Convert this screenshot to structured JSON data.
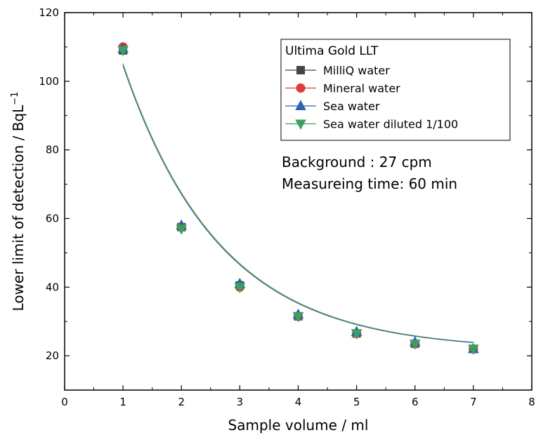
{
  "chart_data": {
    "type": "scatter",
    "xlabel": "Sample volume / ml",
    "ylabel": "Lower limit of detection / BqL",
    "ylabel_sup": "−1",
    "xlim": [
      0,
      8
    ],
    "ylim": [
      10,
      120
    ],
    "xticks": [
      0,
      1,
      2,
      3,
      4,
      5,
      6,
      7,
      8
    ],
    "yticks": [
      20,
      40,
      60,
      80,
      100,
      120
    ],
    "grid": false,
    "legend_title": "Ultima Gold LLT",
    "legend_position": "top-right",
    "annotations": [
      "Background : 27 cpm",
      "Measureing time: 60 min"
    ],
    "series": [
      {
        "name": "MilliQ water",
        "marker": "square",
        "color": "#444444",
        "x": [
          1,
          2,
          3,
          4,
          5,
          6,
          7
        ],
        "y": [
          109,
          57.5,
          40.5,
          31.5,
          26.5,
          23.5,
          22
        ]
      },
      {
        "name": "Mineral water",
        "marker": "circle",
        "color": "#e03a3a",
        "x": [
          1,
          2,
          3,
          4,
          5,
          6,
          7
        ],
        "y": [
          110,
          57.5,
          40,
          31.5,
          26.5,
          23.5,
          22
        ]
      },
      {
        "name": "Sea water",
        "marker": "triangle-up",
        "color": "#2f5fb3",
        "x": [
          1,
          2,
          3,
          4,
          5,
          6,
          7
        ],
        "y": [
          109.5,
          58,
          41,
          32,
          27,
          24,
          22
        ]
      },
      {
        "name": "Sea water diluted 1/100",
        "marker": "triangle-down",
        "color": "#3aa15a",
        "x": [
          1,
          2,
          3,
          4,
          5,
          6,
          7
        ],
        "y": [
          109,
          57,
          40,
          31.5,
          26.5,
          23.5,
          22
        ]
      }
    ],
    "fit_curve": {
      "type": "exponential-decay",
      "A": 151.5,
      "k": 0.6,
      "y0": 21.6,
      "x_range": [
        1,
        7
      ]
    }
  }
}
